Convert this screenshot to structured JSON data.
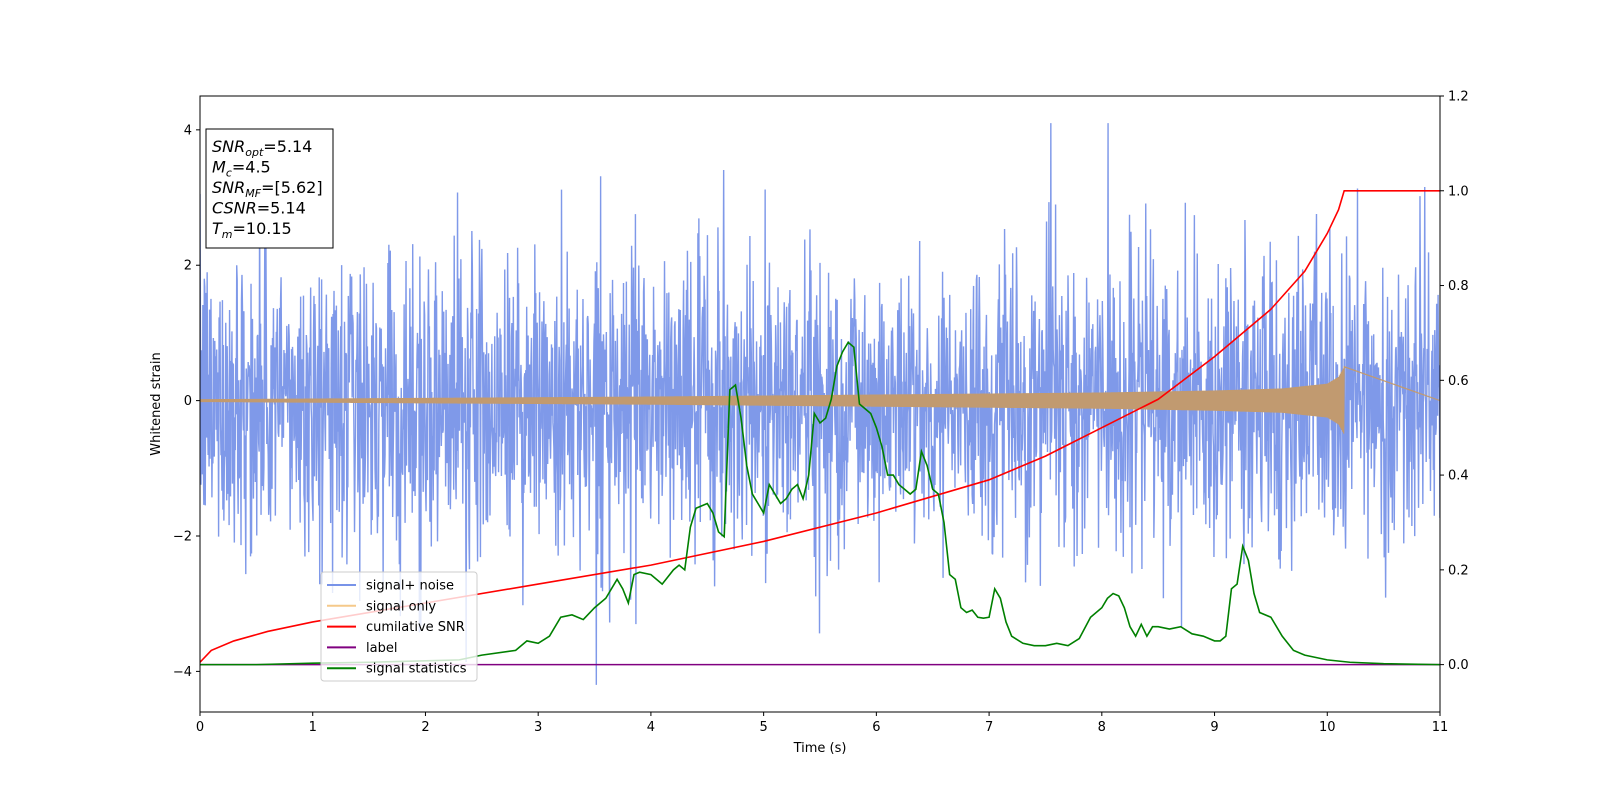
{
  "chart_data": {
    "type": "line",
    "xlabel": "Time (s)",
    "ylabel": "Whitened strain",
    "xlim": [
      0,
      11
    ],
    "ylim_left": [
      -4.6,
      4.5
    ],
    "ylim_right": [
      -0.1,
      1.2
    ],
    "xticks": [
      0,
      1,
      2,
      3,
      4,
      5,
      6,
      7,
      8,
      9,
      10,
      11
    ],
    "yticks_left": [
      -4,
      -2,
      0,
      2,
      4
    ],
    "yticks_right": [
      "0.0",
      "0.2",
      "0.4",
      "0.6",
      "0.8",
      "1.0",
      "1.2"
    ],
    "grid": false,
    "legend_position": "lower-left",
    "annotation_box": [
      {
        "base": "SNR",
        "sub": "opt",
        "value": "=5.14"
      },
      {
        "base": "M",
        "sub": "c",
        "value": "=4.5"
      },
      {
        "base": "SNR",
        "sub": "MF",
        "value": "=[5.62]"
      },
      {
        "base": "CSNR",
        "sub": "",
        "value": "=5.14"
      },
      {
        "base": "T",
        "sub": "m",
        "value": "=10.15"
      }
    ],
    "series": [
      {
        "name": "signal+ noise",
        "color": "#7893e8",
        "axis": "left",
        "description": "whitened strain, noise std ~1.1 across 0-11 s"
      },
      {
        "name": "signal only",
        "color": "#c19a70",
        "legend_color": "#f5c98a",
        "axis": "left",
        "envelope": {
          "t": [
            0,
            2,
            4,
            6,
            8,
            9,
            9.6,
            10,
            10.1,
            10.15
          ],
          "amp": [
            0.02,
            0.04,
            0.06,
            0.09,
            0.12,
            0.15,
            0.18,
            0.25,
            0.35,
            0.5
          ]
        },
        "end_time": 10.15
      },
      {
        "name": "cumilative SNR",
        "color": "#ff0000",
        "axis": "right",
        "x": [
          0,
          0.1,
          0.3,
          0.6,
          1,
          2,
          3,
          4,
          5,
          6,
          7,
          7.5,
          8,
          8.5,
          9,
          9.5,
          9.8,
          10,
          10.1,
          10.15,
          11
        ],
        "y": [
          0.005,
          0.03,
          0.05,
          0.07,
          0.09,
          0.13,
          0.17,
          0.21,
          0.26,
          0.32,
          0.39,
          0.44,
          0.5,
          0.56,
          0.65,
          0.75,
          0.83,
          0.91,
          0.96,
          1.0,
          1.0
        ]
      },
      {
        "name": "label",
        "color": "#800080",
        "axis": "right",
        "x": [
          0,
          11
        ],
        "y": [
          0,
          0
        ]
      },
      {
        "name": "signal statistics",
        "color": "#008000",
        "axis": "right",
        "x": [
          0,
          0.5,
          1,
          1.5,
          2,
          2.3,
          2.5,
          2.8,
          2.9,
          3.0,
          3.1,
          3.2,
          3.3,
          3.4,
          3.5,
          3.6,
          3.7,
          3.75,
          3.8,
          3.85,
          3.9,
          4.0,
          4.1,
          4.2,
          4.25,
          4.3,
          4.35,
          4.4,
          4.5,
          4.55,
          4.6,
          4.65,
          4.7,
          4.75,
          4.8,
          4.85,
          4.9,
          4.95,
          5.0,
          5.05,
          5.1,
          5.15,
          5.2,
          5.25,
          5.3,
          5.35,
          5.4,
          5.45,
          5.5,
          5.55,
          5.6,
          5.65,
          5.7,
          5.75,
          5.8,
          5.85,
          5.9,
          5.95,
          6.0,
          6.05,
          6.1,
          6.15,
          6.2,
          6.25,
          6.3,
          6.35,
          6.4,
          6.45,
          6.5,
          6.55,
          6.6,
          6.65,
          6.7,
          6.75,
          6.8,
          6.85,
          6.9,
          6.95,
          7.0,
          7.05,
          7.1,
          7.15,
          7.2,
          7.3,
          7.4,
          7.5,
          7.6,
          7.7,
          7.8,
          7.9,
          8.0,
          8.05,
          8.1,
          8.15,
          8.2,
          8.25,
          8.3,
          8.35,
          8.4,
          8.45,
          8.5,
          8.6,
          8.7,
          8.8,
          8.9,
          9.0,
          9.05,
          9.1,
          9.15,
          9.2,
          9.25,
          9.3,
          9.35,
          9.4,
          9.5,
          9.6,
          9.7,
          9.8,
          9.9,
          10.0,
          10.2,
          10.5,
          11
        ],
        "y": [
          0.0,
          0.0,
          0.003,
          0.005,
          0.008,
          0.01,
          0.02,
          0.03,
          0.05,
          0.045,
          0.06,
          0.1,
          0.105,
          0.095,
          0.12,
          0.14,
          0.18,
          0.16,
          0.13,
          0.19,
          0.195,
          0.19,
          0.17,
          0.2,
          0.21,
          0.2,
          0.29,
          0.33,
          0.34,
          0.32,
          0.28,
          0.27,
          0.58,
          0.59,
          0.52,
          0.42,
          0.36,
          0.34,
          0.32,
          0.38,
          0.36,
          0.34,
          0.35,
          0.37,
          0.38,
          0.35,
          0.4,
          0.53,
          0.51,
          0.52,
          0.56,
          0.63,
          0.66,
          0.68,
          0.67,
          0.55,
          0.54,
          0.53,
          0.5,
          0.46,
          0.4,
          0.4,
          0.38,
          0.37,
          0.36,
          0.37,
          0.45,
          0.42,
          0.37,
          0.36,
          0.3,
          0.19,
          0.18,
          0.12,
          0.11,
          0.115,
          0.1,
          0.098,
          0.1,
          0.16,
          0.14,
          0.09,
          0.06,
          0.045,
          0.04,
          0.04,
          0.045,
          0.04,
          0.055,
          0.1,
          0.12,
          0.14,
          0.15,
          0.145,
          0.12,
          0.08,
          0.06,
          0.085,
          0.06,
          0.08,
          0.08,
          0.075,
          0.08,
          0.065,
          0.06,
          0.05,
          0.05,
          0.06,
          0.16,
          0.17,
          0.25,
          0.22,
          0.15,
          0.11,
          0.1,
          0.06,
          0.03,
          0.02,
          0.015,
          0.01,
          0.005,
          0.002,
          0.0
        ]
      }
    ]
  }
}
